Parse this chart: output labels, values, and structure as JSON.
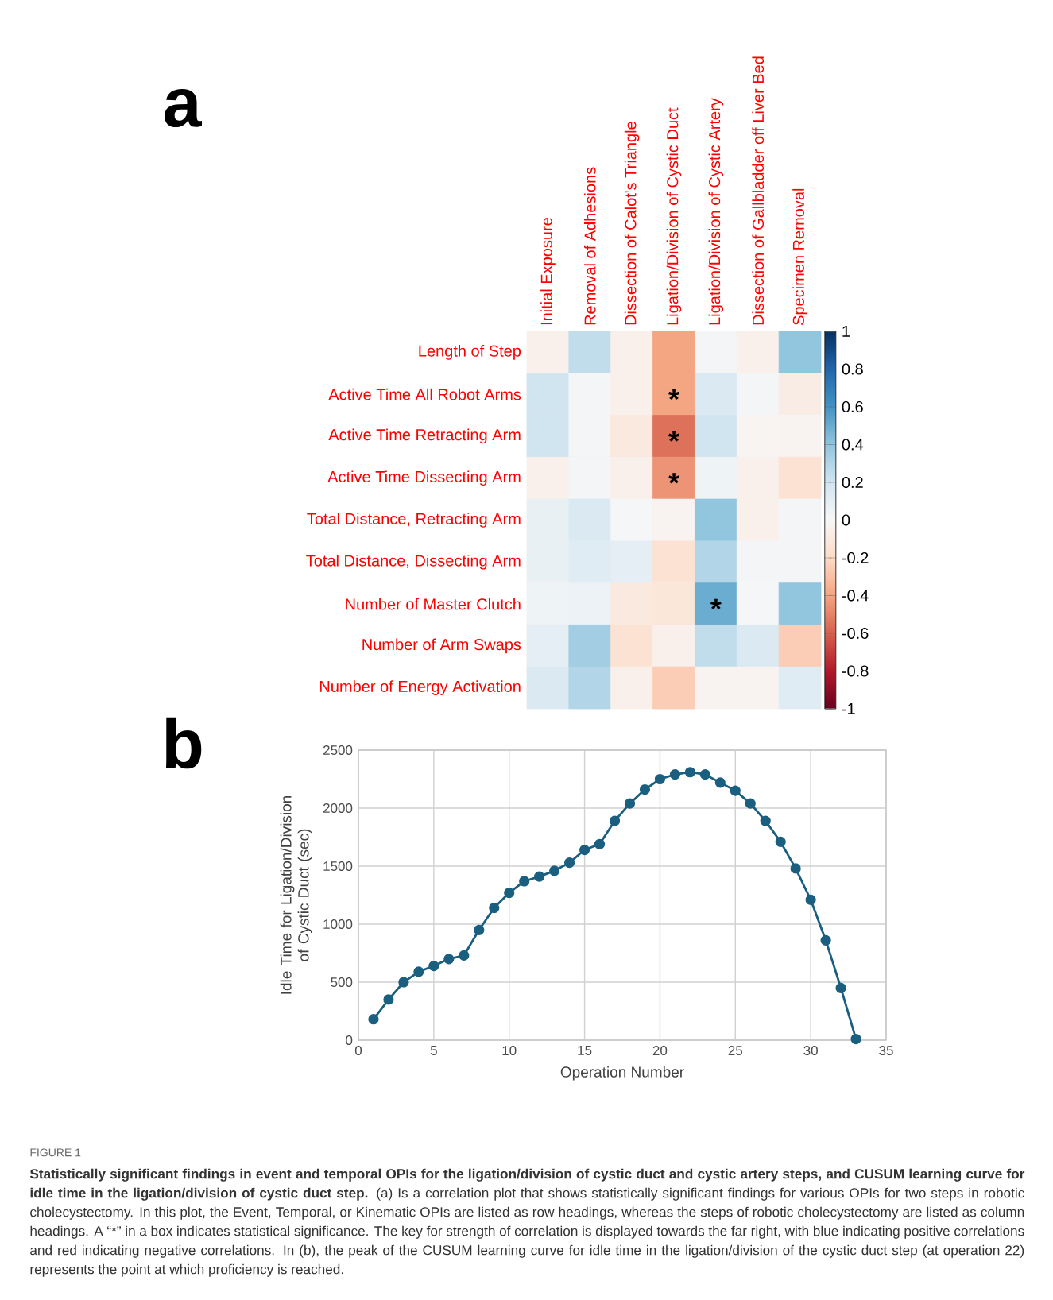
{
  "chart_data": [
    {
      "type": "heatmap",
      "categories": [
        "Initial Exposure",
        "Removal of Adhesions",
        "Dissection of Calot's Triangle",
        "Ligation/Division of Cystic Duct",
        "Ligation/Division of Cystic Artery",
        "Dissection of Gallbladder off Liver Bed",
        "Specimen Removal"
      ],
      "y_categories": [
        "Length of Step",
        "Active Time All Robot Arms",
        "Active Time Retracting Arm",
        "Active Time Dissecting Arm",
        "Total Distance, Retracting Arm",
        "Total Distance, Dissecting Arm",
        "Number of Master Clutch",
        "Number of Arm Swaps",
        "Number of Energy Activation"
      ],
      "cells": [
        [
          -0.05,
          0.25,
          -0.05,
          -0.4,
          0.02,
          -0.05,
          0.4
        ],
        [
          0.2,
          0.02,
          -0.05,
          -0.4,
          0.15,
          0.02,
          -0.08
        ],
        [
          0.2,
          0.02,
          -0.1,
          -0.55,
          0.2,
          -0.02,
          -0.03
        ],
        [
          -0.05,
          0.02,
          -0.05,
          -0.45,
          0.05,
          -0.05,
          -0.15
        ],
        [
          0.08,
          0.15,
          0.01,
          -0.03,
          0.4,
          -0.05,
          0.02
        ],
        [
          0.08,
          0.12,
          0.1,
          -0.15,
          0.3,
          0.02,
          0.02
        ],
        [
          0.05,
          0.06,
          -0.1,
          -0.12,
          0.5,
          0.01,
          0.4
        ],
        [
          0.1,
          0.35,
          -0.15,
          -0.05,
          0.25,
          0.15,
          -0.25
        ],
        [
          0.15,
          0.3,
          -0.05,
          -0.25,
          -0.03,
          -0.03,
          0.12
        ]
      ],
      "cell_labels": [
        [
          null,
          null,
          null,
          null,
          null,
          null,
          null
        ],
        [
          null,
          null,
          null,
          "*",
          null,
          null,
          null
        ],
        [
          null,
          null,
          null,
          "*",
          null,
          null,
          null
        ],
        [
          null,
          null,
          null,
          "*",
          null,
          null,
          null
        ],
        [
          null,
          null,
          null,
          null,
          null,
          null,
          null
        ],
        [
          null,
          null,
          null,
          null,
          null,
          null,
          null
        ],
        [
          null,
          null,
          null,
          null,
          "*",
          null,
          null
        ],
        [
          null,
          null,
          null,
          null,
          null,
          null,
          null
        ],
        [
          null,
          null,
          null,
          null,
          null,
          null,
          null
        ]
      ],
      "clim": [
        -1,
        1
      ],
      "cticks": [
        -1,
        -0.8,
        -0.6,
        -0.4,
        -0.2,
        0,
        0.2,
        0.4,
        0.6,
        0.8,
        1
      ],
      "annotations": [
        "a"
      ]
    },
    {
      "type": "line",
      "x": [
        1,
        2,
        3,
        4,
        5,
        6,
        7,
        8,
        9,
        10,
        11,
        12,
        13,
        14,
        15,
        16,
        17,
        18,
        19,
        20,
        21,
        22,
        23,
        24,
        25,
        26,
        27,
        28,
        29,
        30,
        31,
        32,
        33
      ],
      "values": [
        180,
        350,
        500,
        590,
        640,
        700,
        730,
        950,
        1140,
        1270,
        1370,
        1410,
        1460,
        1530,
        1640,
        1690,
        1890,
        2040,
        2160,
        2250,
        2290,
        2310,
        2290,
        2220,
        2150,
        2040,
        1890,
        1710,
        1480,
        1210,
        860,
        450,
        10
      ],
      "color": "#1b5f80",
      "xlim": [
        0,
        35
      ],
      "ylim": [
        0,
        2500
      ],
      "xticks": [
        0,
        5,
        10,
        15,
        20,
        25,
        30,
        35
      ],
      "yticks": [
        0,
        500,
        1000,
        1500,
        2000,
        2500
      ],
      "xlabel": "Operation Number",
      "ylabel": "Idle Time for Ligation/Division of Cystic Duct (sec)",
      "grid": true,
      "marker": "circle",
      "annotations": [
        "b",
        "FIGURE 1",
        "Statistically significant findings in event and temporal OPIs for the ligation/division of cystic duct and cystic artery steps, and CUSUM learning curve for idle time in the ligation/division of cystic duct step.",
        "(a) Is a correlation plot that shows statistically significant findings for various OPIs for two steps in robotic cholecystectomy. In this plot, the Event, Temporal, or Kinematic OPIs are listed as row headings, whereas the steps of robotic cholecystectomy are listed as column headings. A “*” in a box indicates statistical significance. The key for strength of correlation is displayed towards the far right, with blue indicating positive correlations and red indicating negative correlations. In (b), the peak of the CUSUM learning curve for idle time in the ligation/division of the cystic duct step (at operation 22) represents the point at which proficiency is reached."
      ]
    }
  ]
}
